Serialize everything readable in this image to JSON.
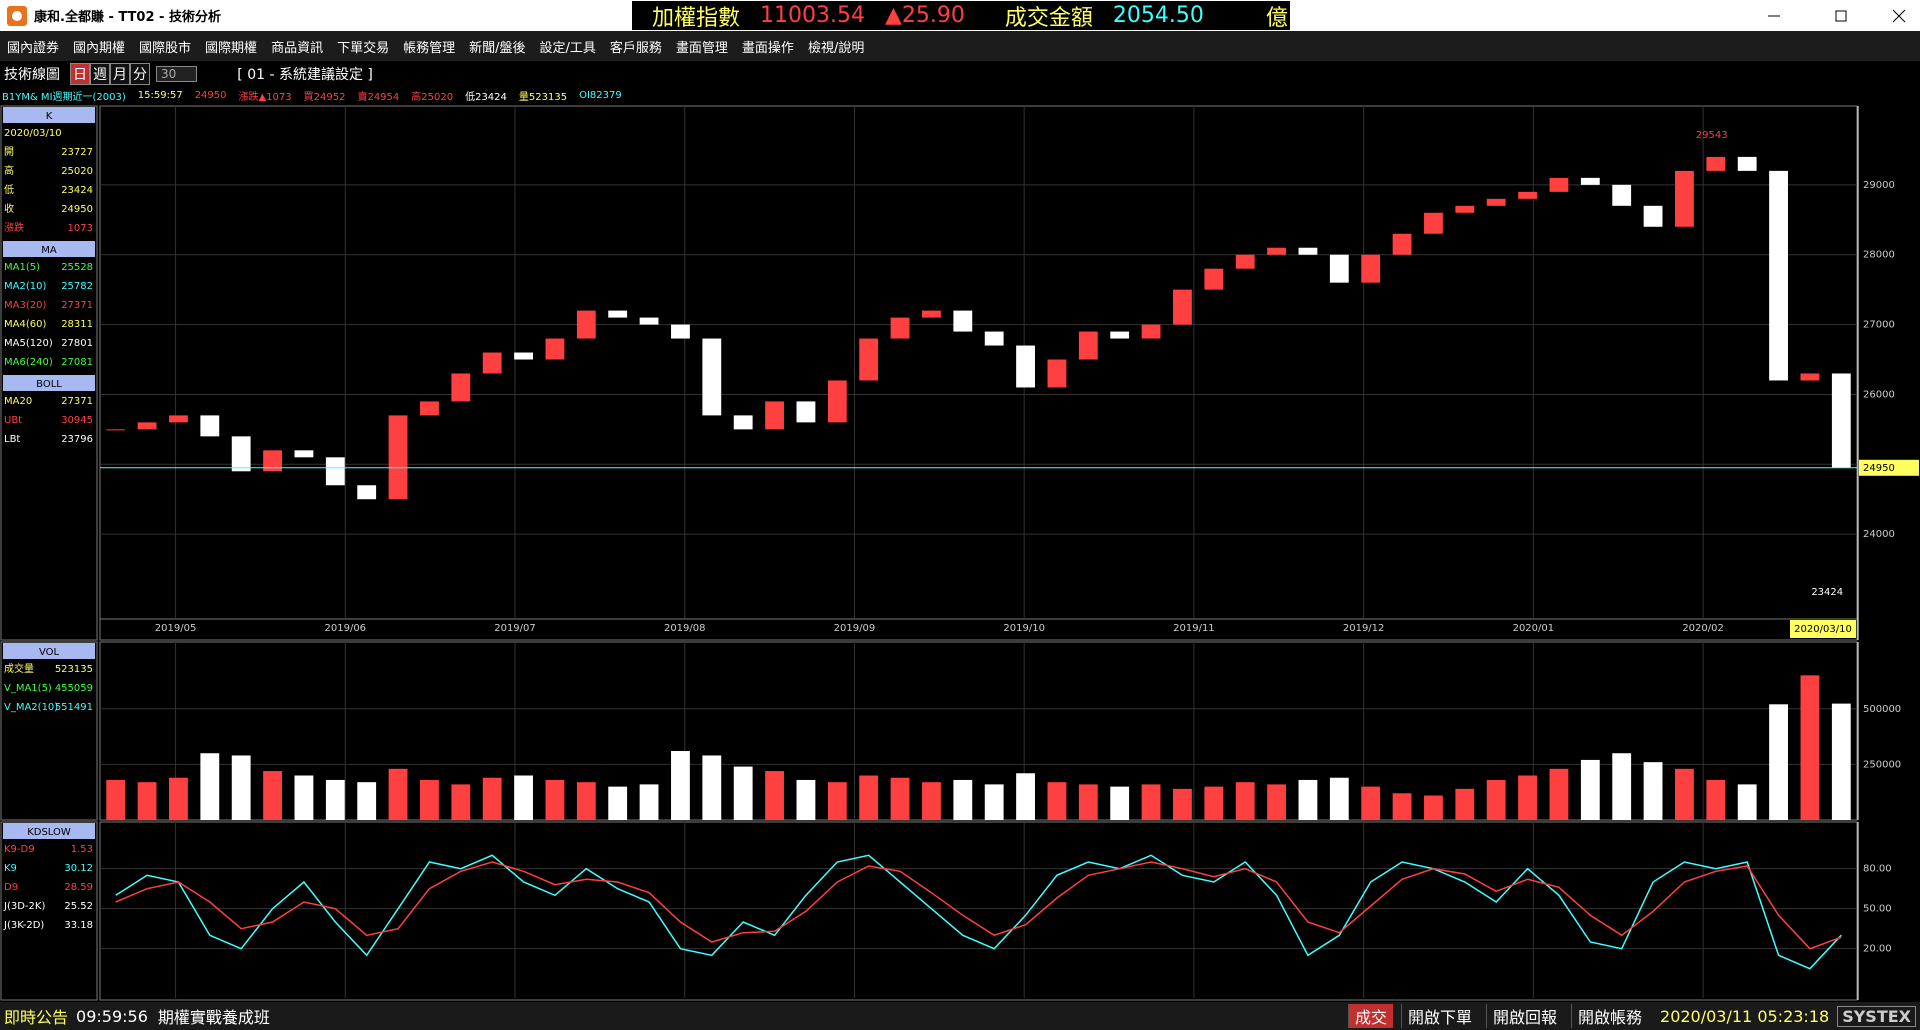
{
  "header": {
    "title": "康和.全都賺 - TT02 - 技術分析",
    "index_name": "加權指數",
    "index_value": "11003.54",
    "index_change": "▲25.90",
    "amount_label": "成交金額",
    "amount": "2054.50",
    "unit": "億"
  },
  "menu": [
    "國內證券",
    "國內期權",
    "國際股市",
    "國際期權",
    "商品資訊",
    "下單交易",
    "帳務管理",
    "新聞/盤後",
    "設定/工具",
    "客戶服務",
    "畫面管理",
    "畫面操作",
    "檢視/說明"
  ],
  "toolbar": {
    "label": "技術線圖",
    "periods": [
      "日",
      "週",
      "月",
      "分"
    ],
    "interval": "30",
    "setting": "[ 01 - 系統建議設定 ]"
  },
  "info": {
    "symbol": "B1YM&  MI週期近一(2003)",
    "time": "15:59:57",
    "items": [
      {
        "text": "24950",
        "color": "#ff4040"
      },
      {
        "text": "漲跌▲1073",
        "color": "#ff4040"
      },
      {
        "text": "買24952",
        "color": "#ff4040"
      },
      {
        "text": "賣24954",
        "color": "#ff4040"
      },
      {
        "text": "高25020",
        "color": "#ff4040"
      },
      {
        "text": "低23424",
        "color": "#ffffff"
      },
      {
        "text": "量523135",
        "color": "#ffff60"
      },
      {
        "text": "OI82379",
        "color": "#40ffff"
      }
    ]
  },
  "sidebar": [
    {
      "title": "K",
      "top": 0,
      "rows": [
        {
          "label": "2020/03/10",
          "color": "#ffff60"
        },
        {
          "label": "開",
          "value": "23727",
          "color": "#ffff60"
        },
        {
          "label": "高",
          "value": "25020",
          "color": "#ffff60"
        },
        {
          "label": "低",
          "value": "23424",
          "color": "#ffff60"
        },
        {
          "label": "收",
          "value": "24950",
          "color": "#ffff60"
        },
        {
          "label": "漲跌",
          "value": "1073",
          "color": "#ff4040"
        }
      ]
    },
    {
      "title": "MA",
      "top": 0,
      "rows": [
        {
          "label": "MA1(5)",
          "value": "25528",
          "color": "#40ff40"
        },
        {
          "label": "MA2(10)",
          "value": "25782",
          "color": "#40ffff"
        },
        {
          "label": "MA3(20)",
          "value": "27371",
          "color": "#ff4040"
        },
        {
          "label": "MA4(60)",
          "value": "28311",
          "color": "#ffff60"
        },
        {
          "label": "MA5(120)",
          "value": "27801",
          "color": "#ffffff"
        },
        {
          "label": "MA6(240)",
          "value": "27081",
          "color": "#40ff40"
        }
      ]
    },
    {
      "title": "BOLL",
      "top": 0,
      "rows": [
        {
          "label": "MA20",
          "value": "27371",
          "color": "#ffff60"
        },
        {
          "label": "UBt",
          "value": "30945",
          "color": "#ff4040"
        },
        {
          "label": "LBt",
          "value": "23796",
          "color": "#ffffff"
        }
      ]
    },
    {
      "title": "VOL",
      "top": 1,
      "rows": [
        {
          "label": "成交量",
          "value": "523135",
          "color": "#ffff60"
        },
        {
          "label": "V_MA1(5)",
          "value": "455059",
          "color": "#40ff40"
        },
        {
          "label": "V_MA2(10)",
          "value": "551491",
          "color": "#40ffff"
        }
      ]
    },
    {
      "title": "KDSLOW",
      "top": 2,
      "rows": [
        {
          "label": "K9-D9",
          "value": "1.53",
          "color": "#ff4040"
        },
        {
          "label": "K9",
          "value": "30.12",
          "color": "#40ffff"
        },
        {
          "label": "D9",
          "value": "28.59",
          "color": "#ff4040"
        },
        {
          "label": "J(3D-2K)",
          "value": "25.52",
          "color": "#ffffff"
        },
        {
          "label": "J(3K-2D)",
          "value": "33.18",
          "color": "#ffffff"
        }
      ]
    }
  ],
  "main": {
    "x_labels": [
      "2019/05",
      "2019/06",
      "2019/07",
      "2019/08",
      "2019/09",
      "2019/10",
      "2019/11",
      "2019/12",
      "2020/01",
      "2020/02"
    ],
    "last_date": "2020/03/10",
    "ylim": [
      22800,
      30100
    ],
    "yticks": [
      24000,
      25000,
      26000,
      27000,
      28000,
      29000
    ],
    "up_color": "#ff4040",
    "down_color": "#ffffff",
    "close": [
      25500,
      25600,
      25700,
      25400,
      24900,
      25200,
      25100,
      24700,
      24500,
      25700,
      25900,
      26300,
      26600,
      26500,
      26800,
      27200,
      27100,
      27000,
      26800,
      25700,
      25500,
      25900,
      25600,
      26200,
      26800,
      27100,
      27200,
      26900,
      26700,
      26100,
      26500,
      26900,
      26800,
      27000,
      27500,
      27800,
      28000,
      28100,
      28000,
      27600,
      28000,
      28300,
      28600,
      28700,
      28800,
      28900,
      29100,
      29000,
      28700,
      28400,
      29200,
      29400,
      29200,
      26200,
      26300,
      24950
    ],
    "price_marker": 24950,
    "high_label": "29543",
    "low_label": "23424"
  },
  "volume": {
    "ylim": [
      0,
      800000
    ],
    "yticks": [
      250000,
      500000
    ],
    "values": [
      180000,
      170000,
      190000,
      300000,
      290000,
      220000,
      200000,
      180000,
      170000,
      230000,
      180000,
      160000,
      190000,
      200000,
      180000,
      170000,
      150000,
      160000,
      310000,
      290000,
      240000,
      220000,
      180000,
      170000,
      200000,
      190000,
      170000,
      180000,
      160000,
      210000,
      170000,
      160000,
      150000,
      160000,
      140000,
      150000,
      170000,
      160000,
      180000,
      190000,
      150000,
      120000,
      110000,
      140000,
      180000,
      200000,
      230000,
      270000,
      300000,
      260000,
      230000,
      180000,
      160000,
      520000,
      650000,
      523135
    ]
  },
  "kd": {
    "ylim": [
      -17,
      115
    ],
    "yticks": [
      {
        "value": 20,
        "label": "20.00"
      },
      {
        "value": 50,
        "label": "50.00"
      },
      {
        "value": 80,
        "label": "80.00"
      }
    ],
    "series": [
      {
        "name": "K9",
        "color": "#40ffff",
        "values": [
          60,
          75,
          70,
          30,
          20,
          50,
          70,
          40,
          15,
          50,
          85,
          80,
          90,
          70,
          60,
          80,
          65,
          55,
          20,
          15,
          40,
          30,
          60,
          85,
          90,
          70,
          50,
          30,
          20,
          45,
          75,
          85,
          80,
          90,
          75,
          70,
          85,
          60,
          15,
          30,
          70,
          85,
          80,
          70,
          55,
          80,
          60,
          25,
          20,
          70,
          85,
          80,
          85,
          15,
          5,
          30.12
        ]
      },
      {
        "name": "D9",
        "color": "#ff4040",
        "values": [
          55,
          65,
          70,
          55,
          35,
          40,
          55,
          50,
          30,
          35,
          65,
          78,
          85,
          78,
          68,
          72,
          70,
          62,
          40,
          25,
          32,
          33,
          48,
          70,
          82,
          78,
          62,
          45,
          30,
          38,
          58,
          75,
          80,
          85,
          80,
          74,
          80,
          70,
          40,
          32,
          52,
          72,
          80,
          76,
          63,
          72,
          66,
          45,
          30,
          48,
          70,
          78,
          82,
          45,
          20,
          28.59
        ]
      }
    ]
  },
  "status": {
    "notice": "即時公告",
    "notice_time": "09:59:56",
    "ticker": "期權實戰養成班",
    "buttons": [
      "成交",
      "開啟下單",
      "開啟回報",
      "開啟帳務"
    ],
    "datetime": "2020/03/11 05:23:18",
    "brand": "SYSTEX"
  }
}
